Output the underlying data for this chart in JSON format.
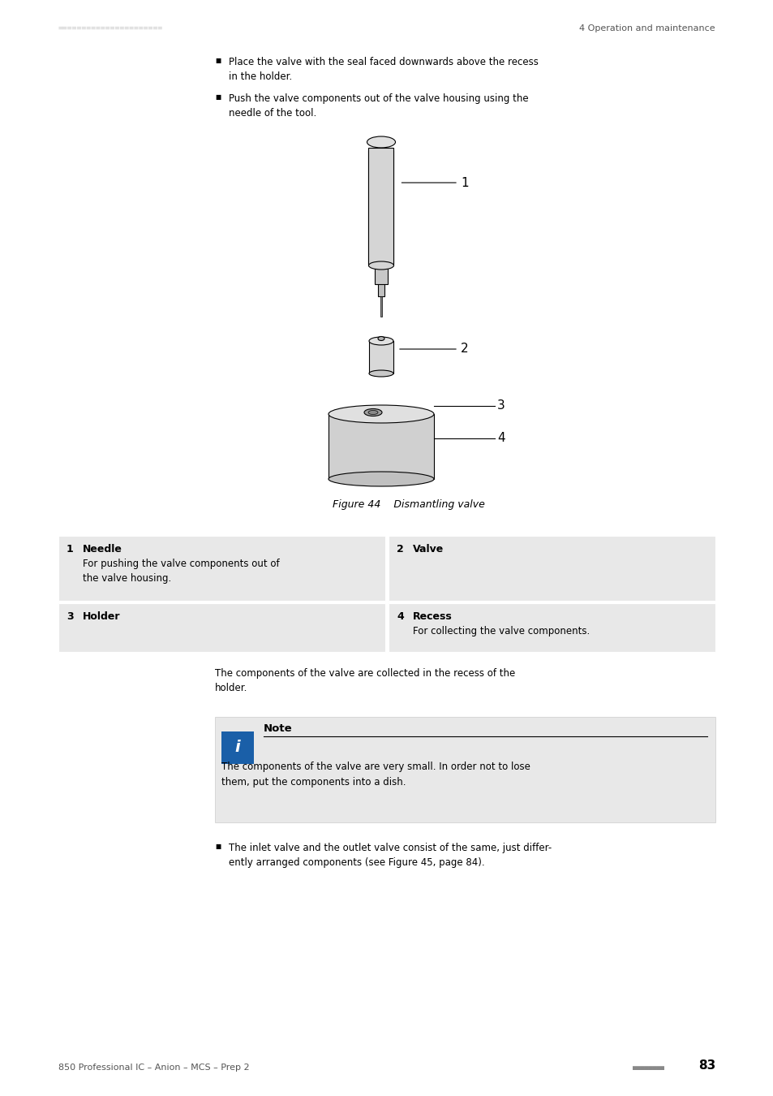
{
  "header_dots_color": "#c0c0c0",
  "header_right_text": "4 Operation and maintenance",
  "footer_left_text": "850 Professional IC – Anion – MCS – Prep 2",
  "footer_right_text": "83",
  "footer_dots_color": "#888888",
  "page_bg": "#ffffff",
  "bullet_text_1": "Place the valve with the seal faced downwards above the recess\nin the holder.",
  "bullet_text_2": "Push the valve components out of the valve housing using the\nneedle of the tool.",
  "figure_caption": "Figure 44    Dismantling valve",
  "table_bg": "#e8e8e8",
  "table_entries": [
    {
      "num": "1",
      "title": "Needle",
      "desc": "For pushing the valve components out of\nthe valve housing."
    },
    {
      "num": "2",
      "title": "Valve",
      "desc": ""
    },
    {
      "num": "3",
      "title": "Holder",
      "desc": ""
    },
    {
      "num": "4",
      "title": "Recess",
      "desc": "For collecting the valve components."
    }
  ],
  "body_text_1": "The components of the valve are collected in the recess of the\nholder.",
  "note_bg": "#e8e8e8",
  "note_icon_bg": "#1a5fa8",
  "note_title": "Note",
  "note_body": "The components of the valve are very small. In order not to lose\nthem, put the components into a dish.",
  "bullet_text_3": "The inlet valve and the outlet valve consist of the same, just differ-\nently arranged components (see Figure 45, page 84).",
  "label_color": "#000000",
  "line_color": "#555555"
}
